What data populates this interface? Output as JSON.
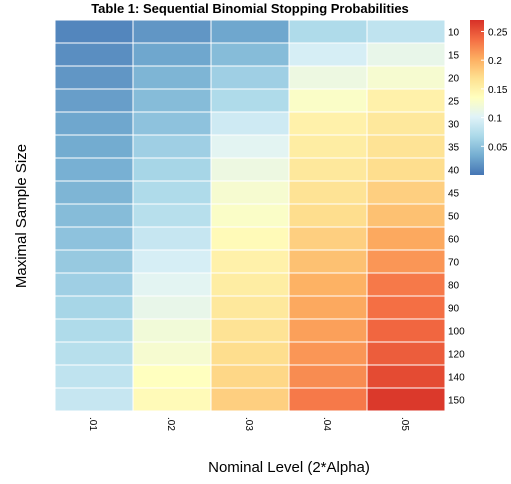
{
  "chart_data": {
    "type": "heatmap",
    "title": "Table 1: Sequential Binomial Stopping Probabilities",
    "xlabel": "Nominal Level (2*Alpha)",
    "ylabel": "Maximal Sample Size",
    "x_categories": [
      ".01",
      ".02",
      ".03",
      ".04",
      ".05"
    ],
    "y_categories": [
      "10",
      "15",
      "20",
      "25",
      "30",
      "35",
      "40",
      "45",
      "50",
      "60",
      "70",
      "80",
      "90",
      "100",
      "120",
      "140",
      "150"
    ],
    "values": [
      [
        0.01,
        0.02,
        0.03,
        0.07,
        0.08
      ],
      [
        0.015,
        0.03,
        0.045,
        0.095,
        0.11
      ],
      [
        0.02,
        0.04,
        0.06,
        0.115,
        0.125
      ],
      [
        0.025,
        0.045,
        0.07,
        0.13,
        0.15
      ],
      [
        0.03,
        0.05,
        0.09,
        0.15,
        0.16
      ],
      [
        0.033,
        0.06,
        0.105,
        0.155,
        0.165
      ],
      [
        0.036,
        0.065,
        0.115,
        0.16,
        0.17
      ],
      [
        0.04,
        0.07,
        0.125,
        0.165,
        0.18
      ],
      [
        0.045,
        0.075,
        0.13,
        0.17,
        0.19
      ],
      [
        0.05,
        0.085,
        0.14,
        0.18,
        0.205
      ],
      [
        0.055,
        0.095,
        0.15,
        0.19,
        0.215
      ],
      [
        0.06,
        0.105,
        0.155,
        0.2,
        0.23
      ],
      [
        0.065,
        0.11,
        0.16,
        0.205,
        0.235
      ],
      [
        0.07,
        0.12,
        0.165,
        0.21,
        0.24
      ],
      [
        0.075,
        0.125,
        0.17,
        0.215,
        0.245
      ],
      [
        0.08,
        0.135,
        0.175,
        0.22,
        0.255
      ],
      [
        0.085,
        0.14,
        0.18,
        0.23,
        0.265
      ]
    ],
    "colorbar": {
      "min": 0,
      "max": 0.27,
      "ticks": [
        0.05,
        0.1,
        0.15,
        0.2,
        0.25
      ],
      "tick_labels": [
        "0.05",
        "0.1",
        "0.15",
        "0.2",
        "0.25"
      ]
    },
    "colormap": [
      "#4575b4",
      "#74add1",
      "#abd9e9",
      "#e0f3f8",
      "#ffffbf",
      "#fee090",
      "#fdae61",
      "#f46d43",
      "#d73027"
    ],
    "grid_line_color": "#ffffff",
    "legend_position": "right"
  }
}
